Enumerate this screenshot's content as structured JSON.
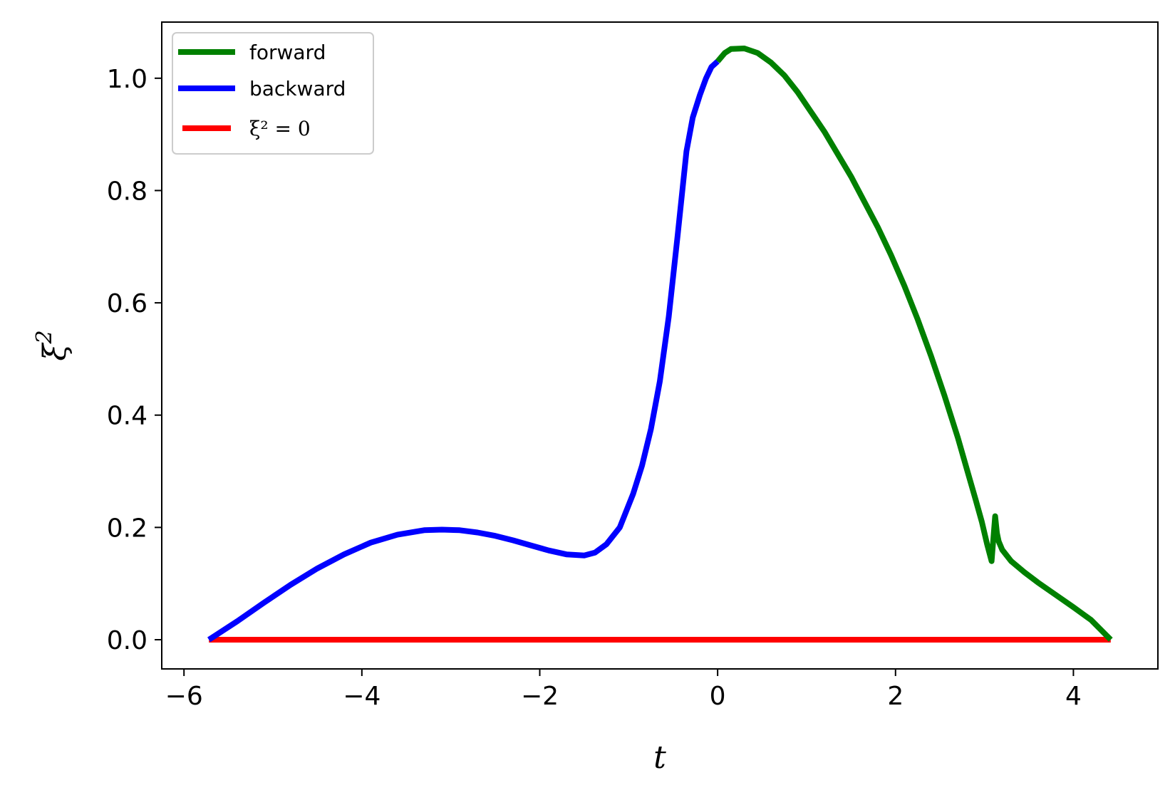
{
  "chart_data": {
    "type": "line",
    "xlabel": "t",
    "ylabel": "ξ",
    "ylabel_sup": "2",
    "xlim": [
      -6.25,
      4.95
    ],
    "ylim": [
      -0.052,
      1.1
    ],
    "xticks": [
      -6,
      -4,
      -2,
      0,
      2,
      4
    ],
    "xtick_labels": [
      "−6",
      "−4",
      "−2",
      "0",
      "2",
      "4"
    ],
    "yticks": [
      0.0,
      0.2,
      0.4,
      0.6,
      0.8,
      1.0
    ],
    "ytick_labels": [
      "0.0",
      "0.2",
      "0.4",
      "0.6",
      "0.8",
      "1.0"
    ],
    "grid": false,
    "legend_position": "top-left",
    "series": [
      {
        "name": "forward",
        "color": "#008000",
        "x": [
          0.0,
          0.08,
          0.15,
          0.3,
          0.45,
          0.6,
          0.75,
          0.9,
          1.05,
          1.2,
          1.35,
          1.5,
          1.65,
          1.8,
          1.95,
          2.1,
          2.25,
          2.4,
          2.55,
          2.7,
          2.8,
          2.9,
          2.97,
          3.03,
          3.08,
          3.12,
          3.14,
          3.16,
          3.2,
          3.3,
          3.45,
          3.6,
          3.8,
          4.0,
          4.2,
          4.42
        ],
        "y": [
          1.03,
          1.045,
          1.052,
          1.053,
          1.045,
          1.028,
          1.005,
          0.975,
          0.94,
          0.905,
          0.865,
          0.825,
          0.78,
          0.735,
          0.685,
          0.63,
          0.57,
          0.505,
          0.435,
          0.36,
          0.305,
          0.25,
          0.21,
          0.17,
          0.14,
          0.22,
          0.19,
          0.175,
          0.16,
          0.14,
          0.12,
          0.102,
          0.08,
          0.058,
          0.035,
          0.0
        ]
      },
      {
        "name": "backward",
        "color": "#0000ff",
        "x": [
          -5.72,
          -5.4,
          -5.1,
          -4.8,
          -4.5,
          -4.2,
          -3.9,
          -3.6,
          -3.3,
          -3.1,
          -2.9,
          -2.7,
          -2.5,
          -2.3,
          -2.1,
          -1.9,
          -1.7,
          -1.5,
          -1.38,
          -1.25,
          -1.1,
          -0.95,
          -0.85,
          -0.75,
          -0.65,
          -0.55,
          -0.45,
          -0.35,
          -0.28,
          -0.2,
          -0.13,
          -0.07,
          0.0
        ],
        "y": [
          0.0,
          0.033,
          0.066,
          0.098,
          0.127,
          0.152,
          0.173,
          0.187,
          0.195,
          0.196,
          0.195,
          0.191,
          0.185,
          0.177,
          0.168,
          0.159,
          0.152,
          0.15,
          0.155,
          0.17,
          0.2,
          0.26,
          0.31,
          0.375,
          0.46,
          0.575,
          0.72,
          0.87,
          0.93,
          0.97,
          1.0,
          1.02,
          1.03
        ]
      },
      {
        "name": "",
        "legend_label": "ξ² = 0",
        "color": "#ff0000",
        "x": [
          -5.72,
          4.42
        ],
        "y": [
          0.0,
          0.0
        ]
      }
    ]
  }
}
